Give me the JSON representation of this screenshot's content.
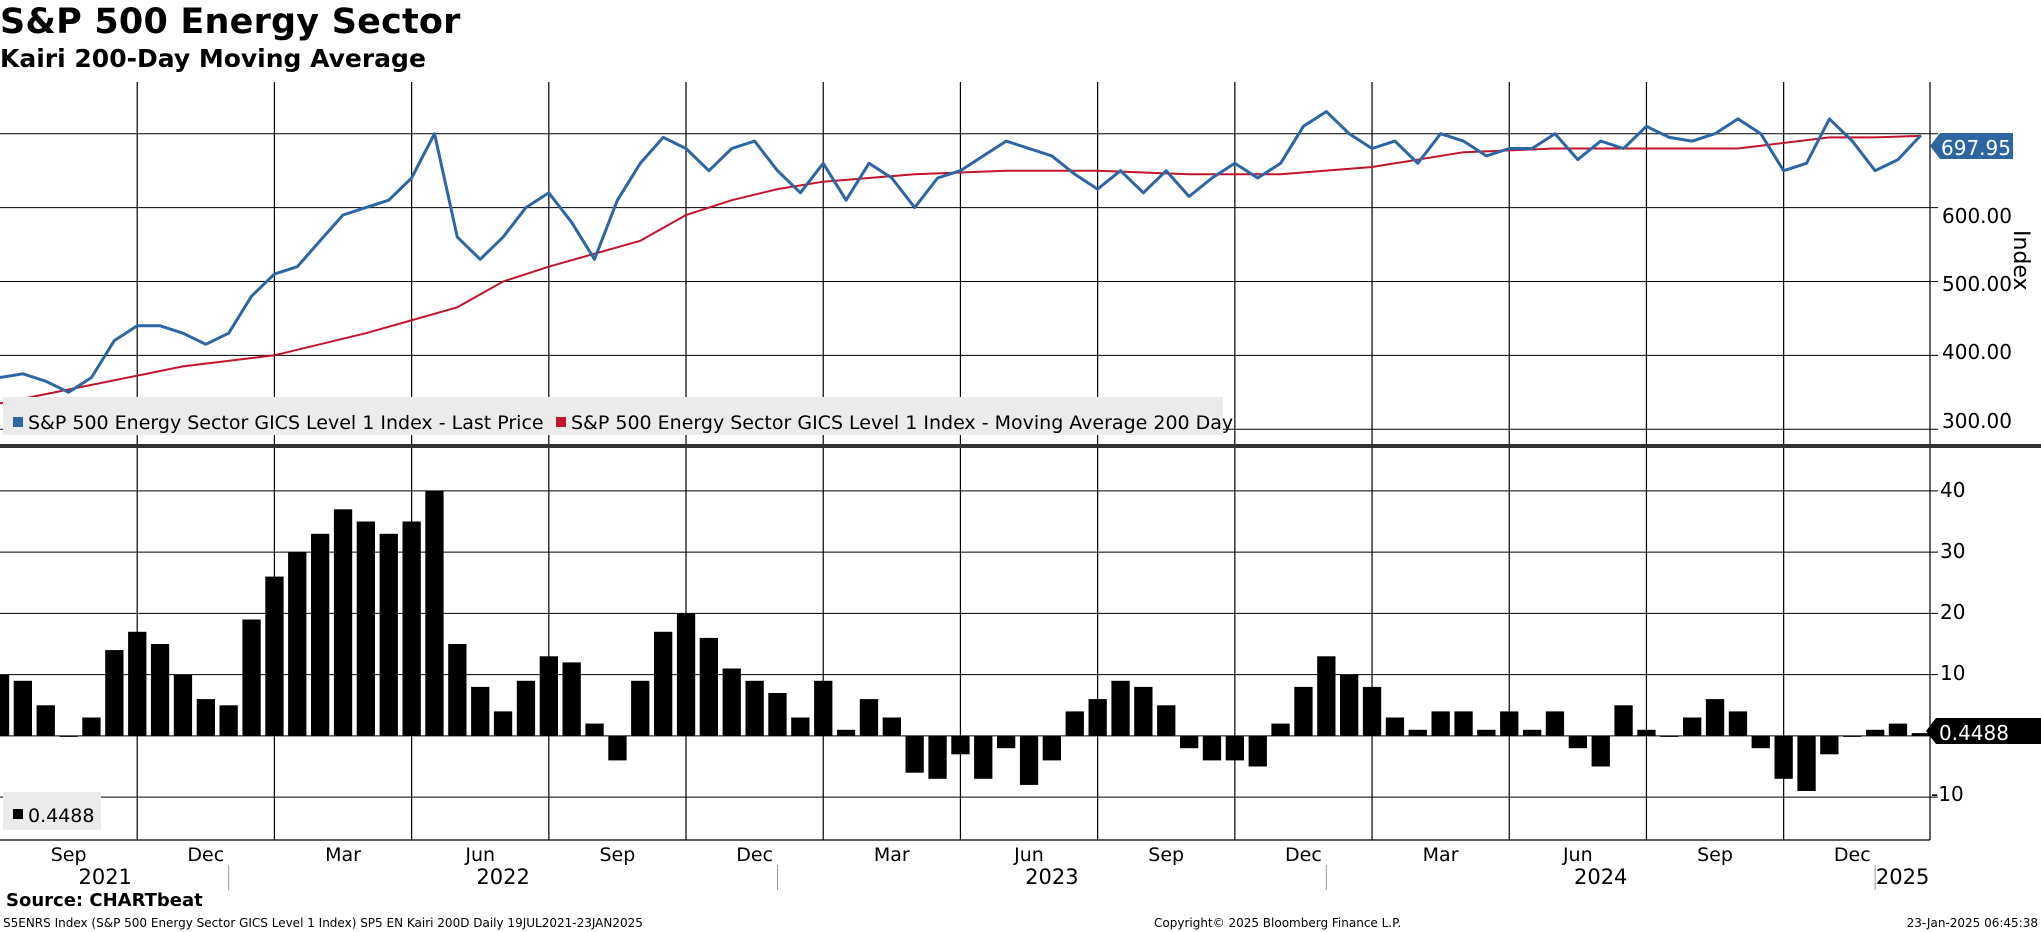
{
  "header": {
    "title": "S&P 500 Energy Sector",
    "subtitle": "Kairi 200-Day Moving Average"
  },
  "footer": {
    "source": "Source: CHARTbeat",
    "ticker_info": "S5ENRS Index (S&P 500 Energy Sector GICS Level 1 Index) SP5 EN Kairi 200D  Daily 19JUL2021-23JAN2025",
    "copyright": "Copyright© 2025 Bloomberg Finance L.P.",
    "timestamp": "23-Jan-2025 06:45:38"
  },
  "colors": {
    "price": "#2e65a3",
    "ma": "#c0152b",
    "bars": "#000000",
    "grid": "#000000"
  },
  "x_axis": {
    "month_labels": [
      "Sep",
      "Dec",
      "Mar",
      "Jun",
      "Sep",
      "Dec",
      "Mar",
      "Jun",
      "Sep",
      "Dec",
      "Mar",
      "Jun",
      "Sep",
      "Dec"
    ],
    "year_labels": [
      "2021",
      "2022",
      "2023",
      "2024",
      "2025"
    ]
  },
  "chart_data": [
    {
      "type": "line",
      "title": "S&P 500 Energy Sector GICS Level 1 Index",
      "ylabel": "Index",
      "ylim": [
        280,
        770
      ],
      "yticks": [
        300,
        400,
        500,
        600,
        700
      ],
      "ytick_labels": [
        "300.00",
        "400.00",
        "500.00",
        "600.00"
      ],
      "last_value_label": "697.95",
      "x_range": [
        0,
        42.2
      ],
      "series": [
        {
          "name": "S&P 500 Energy Sector GICS Level 1 Index - Last Price",
          "x": [
            0,
            0.5,
            1,
            1.5,
            2,
            2.5,
            3,
            3.5,
            4,
            4.5,
            5,
            5.5,
            6,
            6.5,
            7,
            7.5,
            8,
            8.5,
            9,
            9.5,
            10,
            10.5,
            11,
            11.5,
            12,
            12.5,
            13,
            13.5,
            14,
            14.5,
            15,
            15.5,
            16,
            16.5,
            17,
            17.5,
            18,
            18.5,
            19,
            19.5,
            20,
            20.5,
            21,
            21.5,
            22,
            22.5,
            23,
            23.5,
            24,
            24.5,
            25,
            25.5,
            26,
            26.5,
            27,
            27.5,
            28,
            28.5,
            29,
            29.5,
            30,
            30.5,
            31,
            31.5,
            32,
            32.5,
            33,
            33.5,
            34,
            34.5,
            35,
            35.5,
            36,
            36.5,
            37,
            37.5,
            38,
            38.5,
            39,
            39.5,
            40,
            40.5,
            41,
            41.5,
            42
          ],
          "values": [
            370,
            375,
            365,
            350,
            370,
            420,
            440,
            440,
            430,
            415,
            430,
            480,
            510,
            520,
            555,
            590,
            600,
            610,
            640,
            700,
            560,
            530,
            560,
            600,
            620,
            580,
            530,
            610,
            660,
            695,
            680,
            650,
            680,
            690,
            650,
            620,
            660,
            610,
            660,
            640,
            600,
            640,
            650,
            670,
            690,
            680,
            670,
            645,
            625,
            650,
            620,
            650,
            615,
            640,
            660,
            640,
            660,
            710,
            730,
            700,
            680,
            690,
            660,
            700,
            690,
            670,
            680,
            680,
            700,
            665,
            690,
            680,
            710,
            695,
            690,
            700,
            720,
            700,
            650,
            660,
            720,
            690,
            650,
            665,
            698
          ]
        },
        {
          "name": "S&P 500 Energy Sector GICS Level 1 Index - Moving Average 200 Day",
          "x": [
            0,
            2,
            4,
            6,
            8,
            10,
            11,
            12,
            14,
            15,
            16,
            17,
            18,
            20,
            22,
            24,
            26,
            28,
            30,
            32,
            34,
            36,
            38,
            40,
            41,
            42
          ],
          "values": [
            335,
            360,
            385,
            400,
            430,
            465,
            500,
            520,
            555,
            590,
            610,
            625,
            635,
            645,
            650,
            650,
            645,
            645,
            655,
            675,
            680,
            680,
            680,
            695,
            695,
            697
          ]
        }
      ]
    },
    {
      "type": "bar",
      "title": "Kairi 200-Day Moving Average",
      "ylim": [
        -17,
        47
      ],
      "yticks": [
        -10,
        10,
        20,
        30,
        40
      ],
      "ytick_labels": [
        "-10",
        "10",
        "20",
        "30",
        "40"
      ],
      "last_value_label": "0.4488",
      "legend_value": "0.4488",
      "x_range": [
        0,
        42.2
      ],
      "x": [
        0,
        0.5,
        1,
        1.5,
        2,
        2.5,
        3,
        3.5,
        4,
        4.5,
        5,
        5.5,
        6,
        6.5,
        7,
        7.5,
        8,
        8.5,
        9,
        9.5,
        10,
        10.5,
        11,
        11.5,
        12,
        12.5,
        13,
        13.5,
        14,
        14.5,
        15,
        15.5,
        16,
        16.5,
        17,
        17.5,
        18,
        18.5,
        19,
        19.5,
        20,
        20.5,
        21,
        21.5,
        22,
        22.5,
        23,
        23.5,
        24,
        24.5,
        25,
        25.5,
        26,
        26.5,
        27,
        27.5,
        28,
        28.5,
        29,
        29.5,
        30,
        30.5,
        31,
        31.5,
        32,
        32.5,
        33,
        33.5,
        34,
        34.5,
        35,
        35.5,
        36,
        36.5,
        37,
        37.5,
        38,
        38.5,
        39,
        39.5,
        40,
        40.5,
        41,
        41.5,
        42
      ],
      "values": [
        10,
        9,
        5,
        0,
        3,
        14,
        17,
        15,
        10,
        6,
        5,
        19,
        26,
        30,
        33,
        37,
        35,
        33,
        35,
        40,
        15,
        8,
        4,
        9,
        13,
        12,
        2,
        -4,
        9,
        17,
        20,
        16,
        11,
        9,
        7,
        3,
        9,
        1,
        6,
        3,
        -6,
        -7,
        -3,
        -7,
        -2,
        -8,
        -4,
        4,
        6,
        9,
        8,
        5,
        -2,
        -4,
        -4,
        -5,
        2,
        8,
        13,
        10,
        8,
        3,
        1,
        4,
        4,
        1,
        4,
        1,
        4,
        -2,
        -5,
        5,
        1,
        0,
        3,
        6,
        4,
        -2,
        -7,
        -9,
        -3,
        0,
        1,
        2,
        0.4488
      ]
    }
  ]
}
